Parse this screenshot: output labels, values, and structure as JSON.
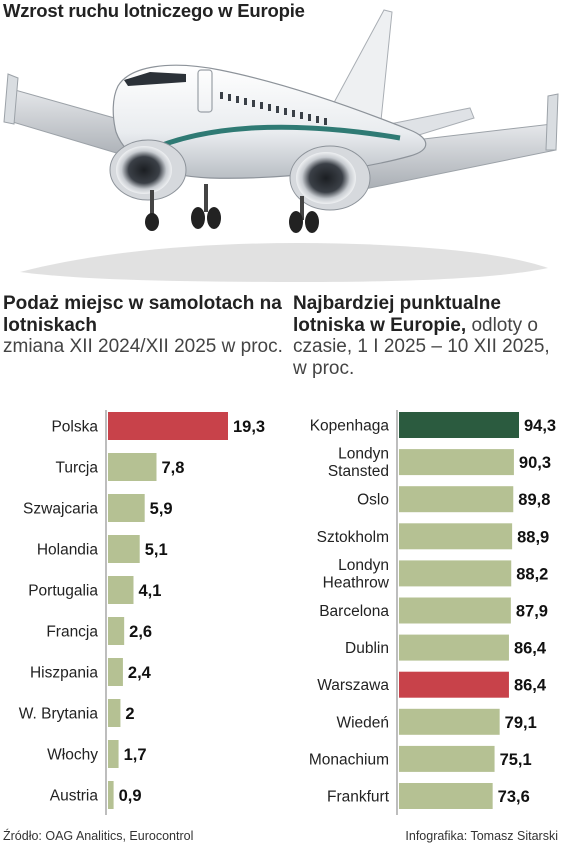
{
  "title": "Wzrost ruchu lotniczego w Europie",
  "left_subtitle": {
    "bold": "Podaż miejsc w samolotach na lotniskach",
    "light": "zmiana XII 2024/XII 2025 w proc."
  },
  "right_subtitle": {
    "bold": "Najbardziej punktualne lotniska w Europie,",
    "light": "odloty o czasie, 1 I 2025 – 10 XII 2025, w proc."
  },
  "footer": {
    "source": "Źródło: OAG Analitics, Eurocontrol",
    "credit": "Infografika: Tomasz Sitarski"
  },
  "colors": {
    "bar_default": "#b5c193",
    "bar_highlight_red": "#c8424a",
    "bar_highlight_green": "#2b5b3f",
    "axis_line": "#9a9a9a",
    "plane_icon": "airplane-photo"
  },
  "chart_data": [
    {
      "type": "bar",
      "orientation": "horizontal",
      "categories": [
        "Polska",
        "Turcja",
        "Szwajcaria",
        "Holandia",
        "Portugalia",
        "Francja",
        "Hiszpania",
        "W. Brytania",
        "Włochy",
        "Austria"
      ],
      "values": [
        19.3,
        7.8,
        5.9,
        5.1,
        4.1,
        2.6,
        2.4,
        2,
        1.7,
        0.9
      ],
      "value_labels": [
        "19,3",
        "7,8",
        "5,9",
        "5,1",
        "4,1",
        "2,6",
        "2,4",
        "2",
        "1,7",
        "0,9"
      ],
      "highlight": {
        "Polska": "red"
      },
      "xlim": [
        0,
        19.3
      ]
    },
    {
      "type": "bar",
      "orientation": "horizontal",
      "categories": [
        "Kopenhaga",
        "Londyn Stansted",
        "Oslo",
        "Sztokholm",
        "Londyn Heathrow",
        "Barcelona",
        "Dublin",
        "Warszawa",
        "Wiedeń",
        "Monachium",
        "Frankfurt"
      ],
      "values": [
        94.3,
        90.3,
        89.8,
        88.9,
        88.2,
        87.9,
        86.4,
        86.4,
        79.1,
        75.1,
        73.6
      ],
      "value_labels": [
        "94,3",
        "90,3",
        "89,8",
        "88,9",
        "88,2",
        "87,9",
        "86,4",
        "86,4",
        "79,1",
        "75,1",
        "73,6"
      ],
      "highlight": {
        "Kopenhaga": "green",
        "Warszawa": "red"
      },
      "xlim": [
        0,
        94.3
      ]
    }
  ]
}
